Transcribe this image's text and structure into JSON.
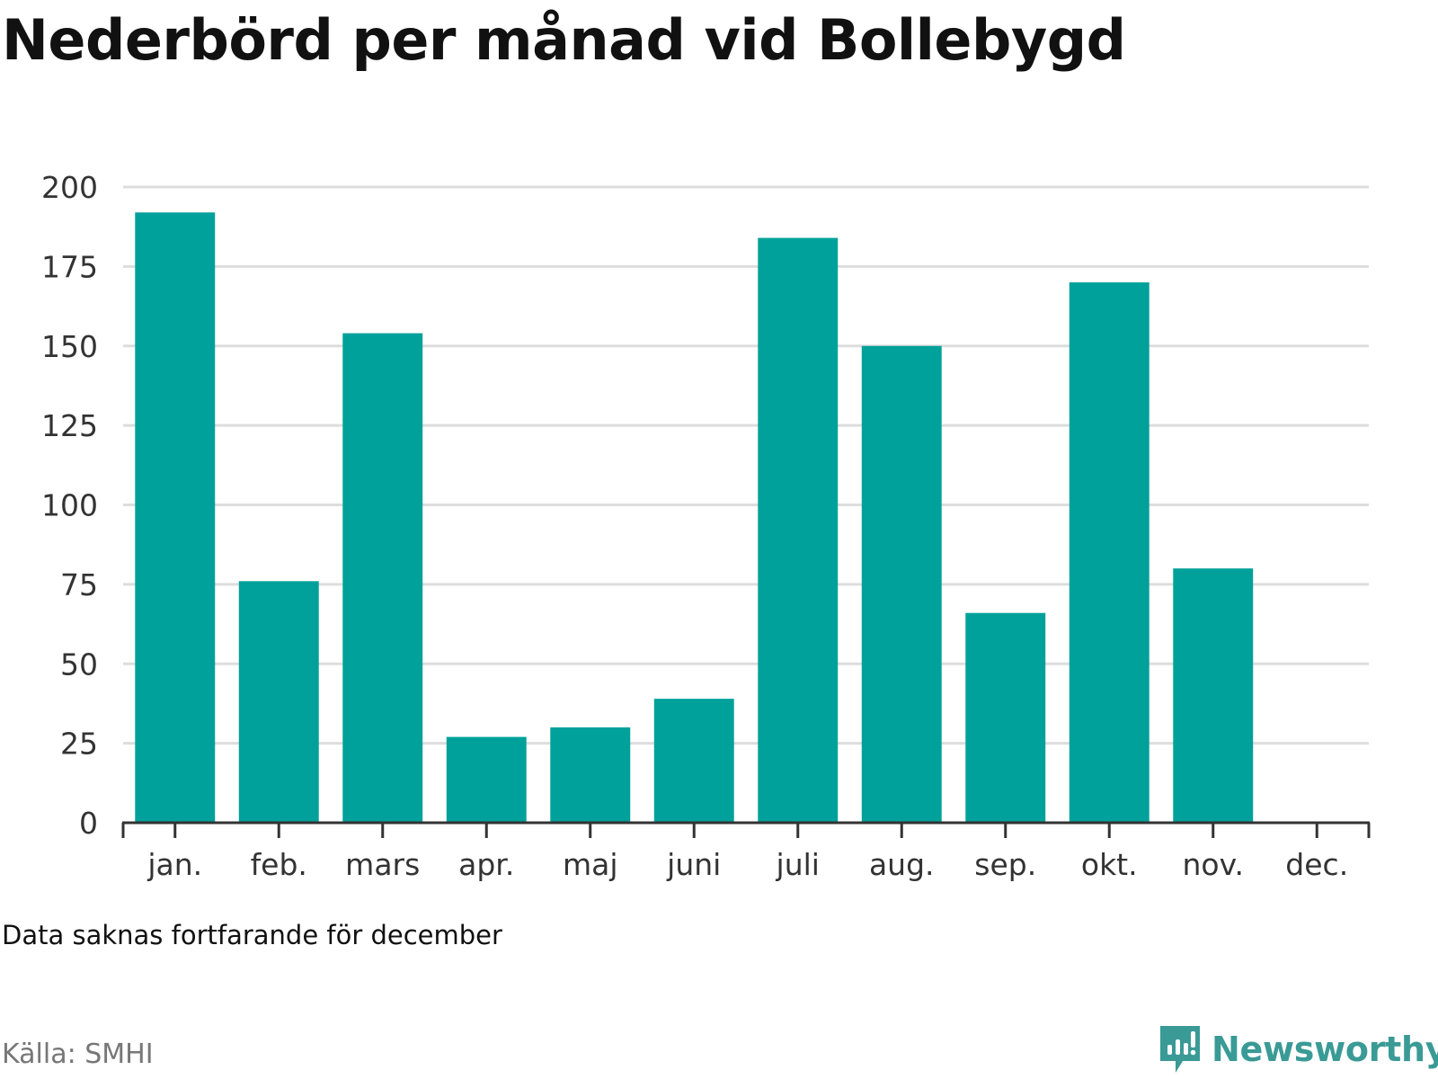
{
  "title": "Nederbörd per månad vid Bollebygd",
  "note": "Data saknas fortfarande för december",
  "source": "Källa: SMHI",
  "brand": {
    "name": "Newsworthy",
    "icon": "newsworthy-logo-icon",
    "color": "#3a9a96"
  },
  "colors": {
    "bar": "#00a19a",
    "grid": "#dddddd",
    "axis": "#333333"
  },
  "chart_data": {
    "type": "bar",
    "categories": [
      "jan.",
      "feb.",
      "mars",
      "apr.",
      "maj",
      "juni",
      "juli",
      "aug.",
      "sep.",
      "okt.",
      "nov.",
      "dec."
    ],
    "values": [
      192,
      76,
      154,
      27,
      30,
      39,
      184,
      150,
      66,
      170,
      80,
      null
    ],
    "ylim": [
      0,
      200
    ],
    "yticks": [
      0,
      25,
      50,
      75,
      100,
      125,
      150,
      175,
      200
    ],
    "title": "Nederbörd per månad vid Bollebygd",
    "xlabel": "",
    "ylabel": "",
    "grid": true,
    "legend": "none"
  }
}
